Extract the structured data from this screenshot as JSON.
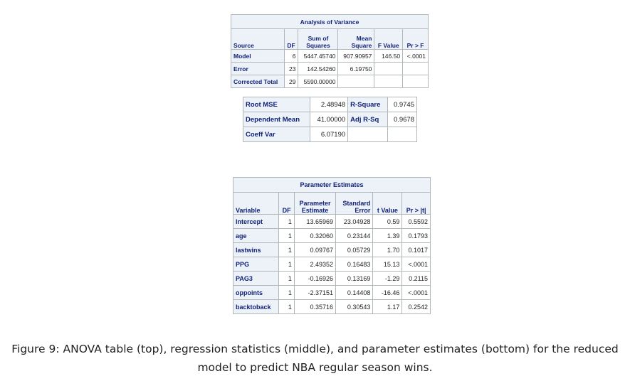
{
  "anova": {
    "title": "Analysis of Variance",
    "headers": [
      "Source",
      "DF",
      "Sum of Squares",
      "Mean Square",
      "F Value",
      "Pr > F"
    ],
    "headers_split": [
      [
        "Source"
      ],
      [
        "DF"
      ],
      [
        "Sum of",
        "Squares"
      ],
      [
        "Mean",
        "Square"
      ],
      [
        "F Value"
      ],
      [
        "Pr > F"
      ]
    ],
    "rows": [
      {
        "source": "Model",
        "df": "6",
        "ss": "5447.45740",
        "ms": "907.90957",
        "f": "146.50",
        "p": "<.0001"
      },
      {
        "source": "Error",
        "df": "23",
        "ss": "142.54260",
        "ms": "6.19750",
        "f": "",
        "p": ""
      },
      {
        "source": "Corrected Total",
        "df": "29",
        "ss": "5590.00000",
        "ms": "",
        "f": "",
        "p": ""
      }
    ]
  },
  "fit": {
    "rows": [
      {
        "l1": "Root MSE",
        "v1": "2.48948",
        "l2": "R-Square",
        "v2": "0.9745"
      },
      {
        "l1": "Dependent Mean",
        "v1": "41.00000",
        "l2": "Adj R-Sq",
        "v2": "0.9678"
      },
      {
        "l1": "Coeff Var",
        "v1": "6.07190",
        "l2": "",
        "v2": ""
      }
    ]
  },
  "params": {
    "title": "Parameter Estimates",
    "headers_split": [
      [
        "Variable"
      ],
      [
        "DF"
      ],
      [
        "Parameter",
        "Estimate"
      ],
      [
        "Standard",
        "Error"
      ],
      [
        "t Value"
      ],
      [
        "Pr > |t|"
      ]
    ],
    "rows": [
      {
        "variable": "Intercept",
        "df": "1",
        "est": "13.65969",
        "se": "23.04928",
        "t": "0.59",
        "p": "0.5592"
      },
      {
        "variable": "age",
        "df": "1",
        "est": "0.32060",
        "se": "0.23144",
        "t": "1.39",
        "p": "0.1793"
      },
      {
        "variable": "lastwins",
        "df": "1",
        "est": "0.09767",
        "se": "0.05729",
        "t": "1.70",
        "p": "0.1017"
      },
      {
        "variable": "PPG",
        "df": "1",
        "est": "2.49352",
        "se": "0.16483",
        "t": "15.13",
        "p": "<.0001"
      },
      {
        "variable": "PAG3",
        "df": "1",
        "est": "-0.16926",
        "se": "0.13169",
        "t": "-1.29",
        "p": "0.2115"
      },
      {
        "variable": "oppoints",
        "df": "1",
        "est": "-2.37151",
        "se": "0.14408",
        "t": "-16.46",
        "p": "<.0001"
      },
      {
        "variable": "backtoback",
        "df": "1",
        "est": "0.35716",
        "se": "0.30543",
        "t": "1.17",
        "p": "0.2542"
      }
    ]
  },
  "caption": {
    "line1": "Figure 9: ANOVA table (top), regression statistics (middle), and parameter estimates (bottom) for the reduced",
    "line2": "model to predict NBA regular season wins."
  }
}
